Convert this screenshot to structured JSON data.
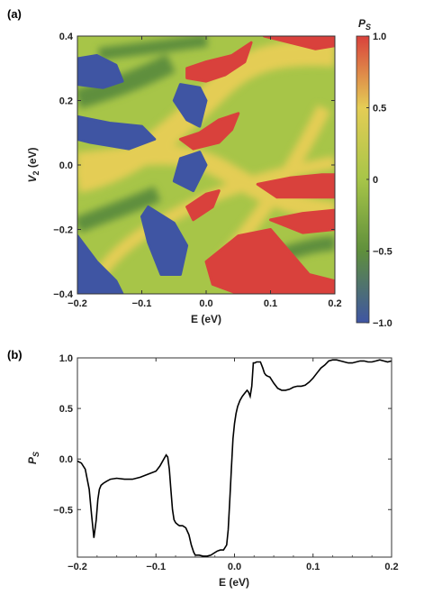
{
  "chart_data": [
    {
      "panel_label": "(a)",
      "type": "heatmap",
      "xlabel": "E (eV)",
      "ylabel_main": "V",
      "ylabel_sub": "2",
      "ylabel_tail": " (eV)",
      "xlim": [
        -0.2,
        0.2
      ],
      "ylim": [
        -0.4,
        0.4
      ],
      "xticks": [
        -0.2,
        -0.1,
        0.0,
        0.1,
        0.2
      ],
      "xtick_labels": [
        "−0.2",
        "−0.1",
        "0.0",
        "0.1",
        "0.2"
      ],
      "yticks": [
        -0.4,
        -0.2,
        0.0,
        0.2,
        0.4
      ],
      "ytick_labels": [
        "−0.4",
        "−0.2",
        "0.0",
        "0.2",
        "0.4"
      ],
      "colorbar": {
        "title_main": "P",
        "title_sub": "S",
        "range": [
          -1.0,
          1.0
        ],
        "ticks": [
          1.0,
          0.5,
          0,
          -0.5,
          -1.0
        ],
        "tick_labels": [
          "1.0",
          "0.5",
          "0",
          "−0.5",
          "−1.0"
        ],
        "colors": [
          "#3f55a3",
          "#5f8f3c",
          "#a7c548",
          "#e4cd55",
          "#d9413c"
        ]
      },
      "regions": [
        {
          "value": -0.9,
          "points": [
            [
              -0.2,
              0.33
            ],
            [
              -0.17,
              0.34
            ],
            [
              -0.14,
              0.31
            ],
            [
              -0.13,
              0.26
            ],
            [
              -0.16,
              0.24
            ],
            [
              -0.2,
              0.25
            ]
          ]
        },
        {
          "value": -0.9,
          "points": [
            [
              -0.2,
              0.15
            ],
            [
              -0.15,
              0.13
            ],
            [
              -0.1,
              0.12
            ],
            [
              -0.08,
              0.08
            ],
            [
              -0.12,
              0.05
            ],
            [
              -0.18,
              0.07
            ],
            [
              -0.2,
              0.08
            ]
          ]
        },
        {
          "value": -0.9,
          "points": [
            [
              -0.04,
              0.25
            ],
            [
              -0.01,
              0.24
            ],
            [
              0.0,
              0.2
            ],
            [
              -0.01,
              0.12
            ],
            [
              -0.03,
              0.14
            ],
            [
              -0.05,
              0.2
            ]
          ]
        },
        {
          "value": -0.9,
          "points": [
            [
              -0.04,
              0.02
            ],
            [
              -0.01,
              0.04
            ],
            [
              0.0,
              0.0
            ],
            [
              -0.02,
              -0.08
            ],
            [
              -0.05,
              -0.05
            ]
          ]
        },
        {
          "value": -0.9,
          "points": [
            [
              -0.2,
              -0.22
            ],
            [
              -0.17,
              -0.3
            ],
            [
              -0.14,
              -0.36
            ],
            [
              -0.13,
              -0.4
            ],
            [
              -0.2,
              -0.4
            ]
          ]
        },
        {
          "value": -0.9,
          "points": [
            [
              -0.09,
              -0.13
            ],
            [
              -0.05,
              -0.18
            ],
            [
              -0.03,
              -0.25
            ],
            [
              -0.04,
              -0.34
            ],
            [
              -0.07,
              -0.34
            ],
            [
              -0.09,
              -0.24
            ],
            [
              -0.1,
              -0.16
            ]
          ]
        },
        {
          "value": 0.95,
          "points": [
            [
              -0.03,
              0.3
            ],
            [
              0.0,
              0.32
            ],
            [
              0.04,
              0.34
            ],
            [
              0.07,
              0.38
            ],
            [
              0.06,
              0.32
            ],
            [
              0.03,
              0.28
            ],
            [
              0.0,
              0.26
            ],
            [
              -0.03,
              0.27
            ]
          ]
        },
        {
          "value": 0.95,
          "points": [
            [
              0.09,
              0.4
            ],
            [
              0.13,
              0.38
            ],
            [
              0.17,
              0.36
            ],
            [
              0.2,
              0.37
            ],
            [
              0.2,
              0.4
            ]
          ]
        },
        {
          "value": 0.95,
          "points": [
            [
              -0.04,
              0.08
            ],
            [
              -0.01,
              0.1
            ],
            [
              0.02,
              0.14
            ],
            [
              0.05,
              0.16
            ],
            [
              0.04,
              0.11
            ],
            [
              0.02,
              0.07
            ],
            [
              -0.02,
              0.05
            ]
          ]
        },
        {
          "value": 0.95,
          "points": [
            [
              -0.03,
              -0.13
            ],
            [
              0.0,
              -0.09
            ],
            [
              0.02,
              -0.08
            ],
            [
              0.01,
              -0.13
            ],
            [
              -0.02,
              -0.17
            ]
          ]
        },
        {
          "value": 0.95,
          "points": [
            [
              0.08,
              -0.06
            ],
            [
              0.13,
              -0.04
            ],
            [
              0.18,
              -0.03
            ],
            [
              0.2,
              -0.03
            ],
            [
              0.2,
              -0.1
            ],
            [
              0.16,
              -0.1
            ],
            [
              0.11,
              -0.1
            ]
          ]
        },
        {
          "value": 0.95,
          "points": [
            [
              0.1,
              -0.17
            ],
            [
              0.15,
              -0.15
            ],
            [
              0.2,
              -0.14
            ],
            [
              0.2,
              -0.2
            ],
            [
              0.15,
              -0.21
            ]
          ]
        },
        {
          "value": 0.95,
          "points": [
            [
              0.0,
              -0.3
            ],
            [
              0.05,
              -0.22
            ],
            [
              0.1,
              -0.2
            ],
            [
              0.13,
              -0.27
            ],
            [
              0.16,
              -0.34
            ],
            [
              0.2,
              -0.36
            ],
            [
              0.2,
              -0.4
            ],
            [
              0.05,
              -0.4
            ],
            [
              0.01,
              -0.37
            ]
          ]
        }
      ]
    },
    {
      "panel_label": "(b)",
      "type": "line",
      "xlabel": "E (eV)",
      "ylabel_main": "P",
      "ylabel_sub": "S",
      "xlim": [
        -0.2,
        0.2
      ],
      "ylim": [
        -0.97,
        1.0
      ],
      "xticks": [
        -0.2,
        -0.1,
        0.0,
        0.1,
        0.2
      ],
      "xtick_labels": [
        "−0.2",
        "−0.1",
        "0.0",
        "0.1",
        "0.2"
      ],
      "yticks": [
        1.0,
        0.5,
        0.0,
        -0.5
      ],
      "ytick_labels": [
        "1.0",
        "0.5",
        "0.0",
        "−0.5"
      ],
      "series": [
        {
          "x": [
            -0.2,
            -0.195,
            -0.19,
            -0.185,
            -0.182,
            -0.179,
            -0.176,
            -0.174,
            -0.172,
            -0.17,
            -0.167,
            -0.163,
            -0.158,
            -0.15,
            -0.14,
            -0.13,
            -0.12,
            -0.11,
            -0.1,
            -0.095,
            -0.09,
            -0.087,
            -0.085,
            -0.083,
            -0.081,
            -0.079,
            -0.077,
            -0.075,
            -0.072,
            -0.07,
            -0.066,
            -0.062,
            -0.058,
            -0.055,
            -0.052,
            -0.05,
            -0.045,
            -0.04,
            -0.035,
            -0.03,
            -0.026,
            -0.022,
            -0.018,
            -0.014,
            -0.01,
            -0.008,
            -0.006,
            -0.004,
            -0.002,
            0.0,
            0.002,
            0.004,
            0.007,
            0.01,
            0.013,
            0.016,
            0.018,
            0.02,
            0.022,
            0.024,
            0.026,
            0.028,
            0.03,
            0.033,
            0.036,
            0.038,
            0.04,
            0.042,
            0.045,
            0.05,
            0.055,
            0.06,
            0.065,
            0.07,
            0.075,
            0.08,
            0.085,
            0.09,
            0.095,
            0.1,
            0.105,
            0.11,
            0.115,
            0.12,
            0.125,
            0.13,
            0.135,
            0.14,
            0.145,
            0.15,
            0.155,
            0.16,
            0.165,
            0.17,
            0.175,
            0.18,
            0.185,
            0.19,
            0.195,
            0.2
          ],
          "y": [
            -0.02,
            -0.04,
            -0.1,
            -0.3,
            -0.55,
            -0.78,
            -0.6,
            -0.4,
            -0.3,
            -0.26,
            -0.24,
            -0.22,
            -0.2,
            -0.19,
            -0.2,
            -0.2,
            -0.18,
            -0.15,
            -0.12,
            -0.07,
            0.0,
            0.04,
            0.02,
            -0.1,
            -0.3,
            -0.5,
            -0.6,
            -0.63,
            -0.65,
            -0.66,
            -0.66,
            -0.68,
            -0.75,
            -0.85,
            -0.92,
            -0.95,
            -0.95,
            -0.96,
            -0.96,
            -0.95,
            -0.93,
            -0.91,
            -0.9,
            -0.9,
            -0.85,
            -0.7,
            -0.4,
            -0.1,
            0.2,
            0.35,
            0.45,
            0.52,
            0.58,
            0.62,
            0.65,
            0.68,
            0.66,
            0.62,
            0.72,
            0.95,
            0.95,
            0.96,
            0.96,
            0.96,
            0.9,
            0.85,
            0.83,
            0.82,
            0.81,
            0.75,
            0.7,
            0.68,
            0.68,
            0.69,
            0.71,
            0.72,
            0.72,
            0.73,
            0.76,
            0.8,
            0.85,
            0.9,
            0.93,
            0.97,
            0.98,
            0.98,
            0.97,
            0.96,
            0.95,
            0.95,
            0.96,
            0.97,
            0.97,
            0.96,
            0.96,
            0.97,
            0.98,
            0.97,
            0.96,
            0.97
          ]
        }
      ]
    }
  ]
}
